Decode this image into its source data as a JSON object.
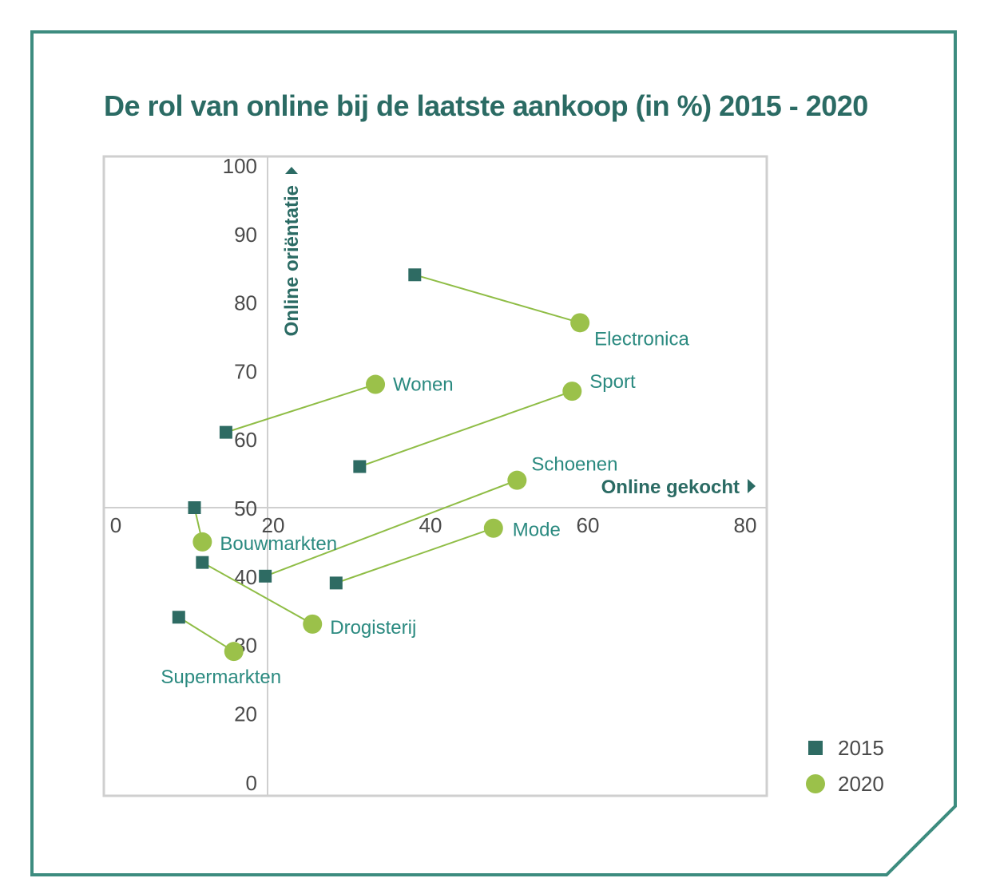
{
  "title": "De rol van online bij de laatste aankoop (in %) 2015 - 2020",
  "colors": {
    "frame": "#3d8c7f",
    "title": "#2b6b64",
    "marker_2015": "#2e6b63",
    "marker_2020": "#9bc14a",
    "connector": "#8fbd46",
    "label": "#2b8a80",
    "plot_border": "#cfcfcf"
  },
  "chart_data": {
    "type": "scatter",
    "title": "De rol van online bij de laatste aankoop (in %) 2015 - 2020",
    "xlabel": "Online gekocht",
    "ylabel": "Online oriëntatie",
    "xlim": [
      0,
      80
    ],
    "ylim": [
      0,
      100
    ],
    "x_ticks": [
      "0",
      "20",
      "40",
      "60",
      "80"
    ],
    "y_ticks": [
      "0",
      "20",
      "30",
      "40",
      "50",
      "60",
      "70",
      "80",
      "90",
      "100"
    ],
    "grid": false,
    "legend_position": "bottom-right",
    "series": [
      {
        "name": "2015",
        "marker": "square"
      },
      {
        "name": "2020",
        "marker": "circle"
      }
    ],
    "points": [
      {
        "category": "Electronica",
        "x2015": 38,
        "y2015": 84,
        "x2020": 59,
        "y2020": 77
      },
      {
        "category": "Wonen",
        "x2015": 14,
        "y2015": 61,
        "x2020": 33,
        "y2020": 68
      },
      {
        "category": "Sport",
        "x2015": 31,
        "y2015": 56,
        "x2020": 58,
        "y2020": 67
      },
      {
        "category": "Schoenen",
        "x2015": 19,
        "y2015": 40,
        "x2020": 51,
        "y2020": 54
      },
      {
        "category": "Mode",
        "x2015": 28,
        "y2015": 39,
        "x2020": 48,
        "y2020": 47
      },
      {
        "category": "Bouwmarkten",
        "x2015": 10,
        "y2015": 50,
        "x2020": 11,
        "y2020": 45
      },
      {
        "category": "Drogisterij",
        "x2015": 11,
        "y2015": 42,
        "x2020": 25,
        "y2020": 33
      },
      {
        "category": "Supermarkten",
        "x2015": 8,
        "y2015": 34,
        "x2020": 15,
        "y2020": 29
      }
    ]
  }
}
